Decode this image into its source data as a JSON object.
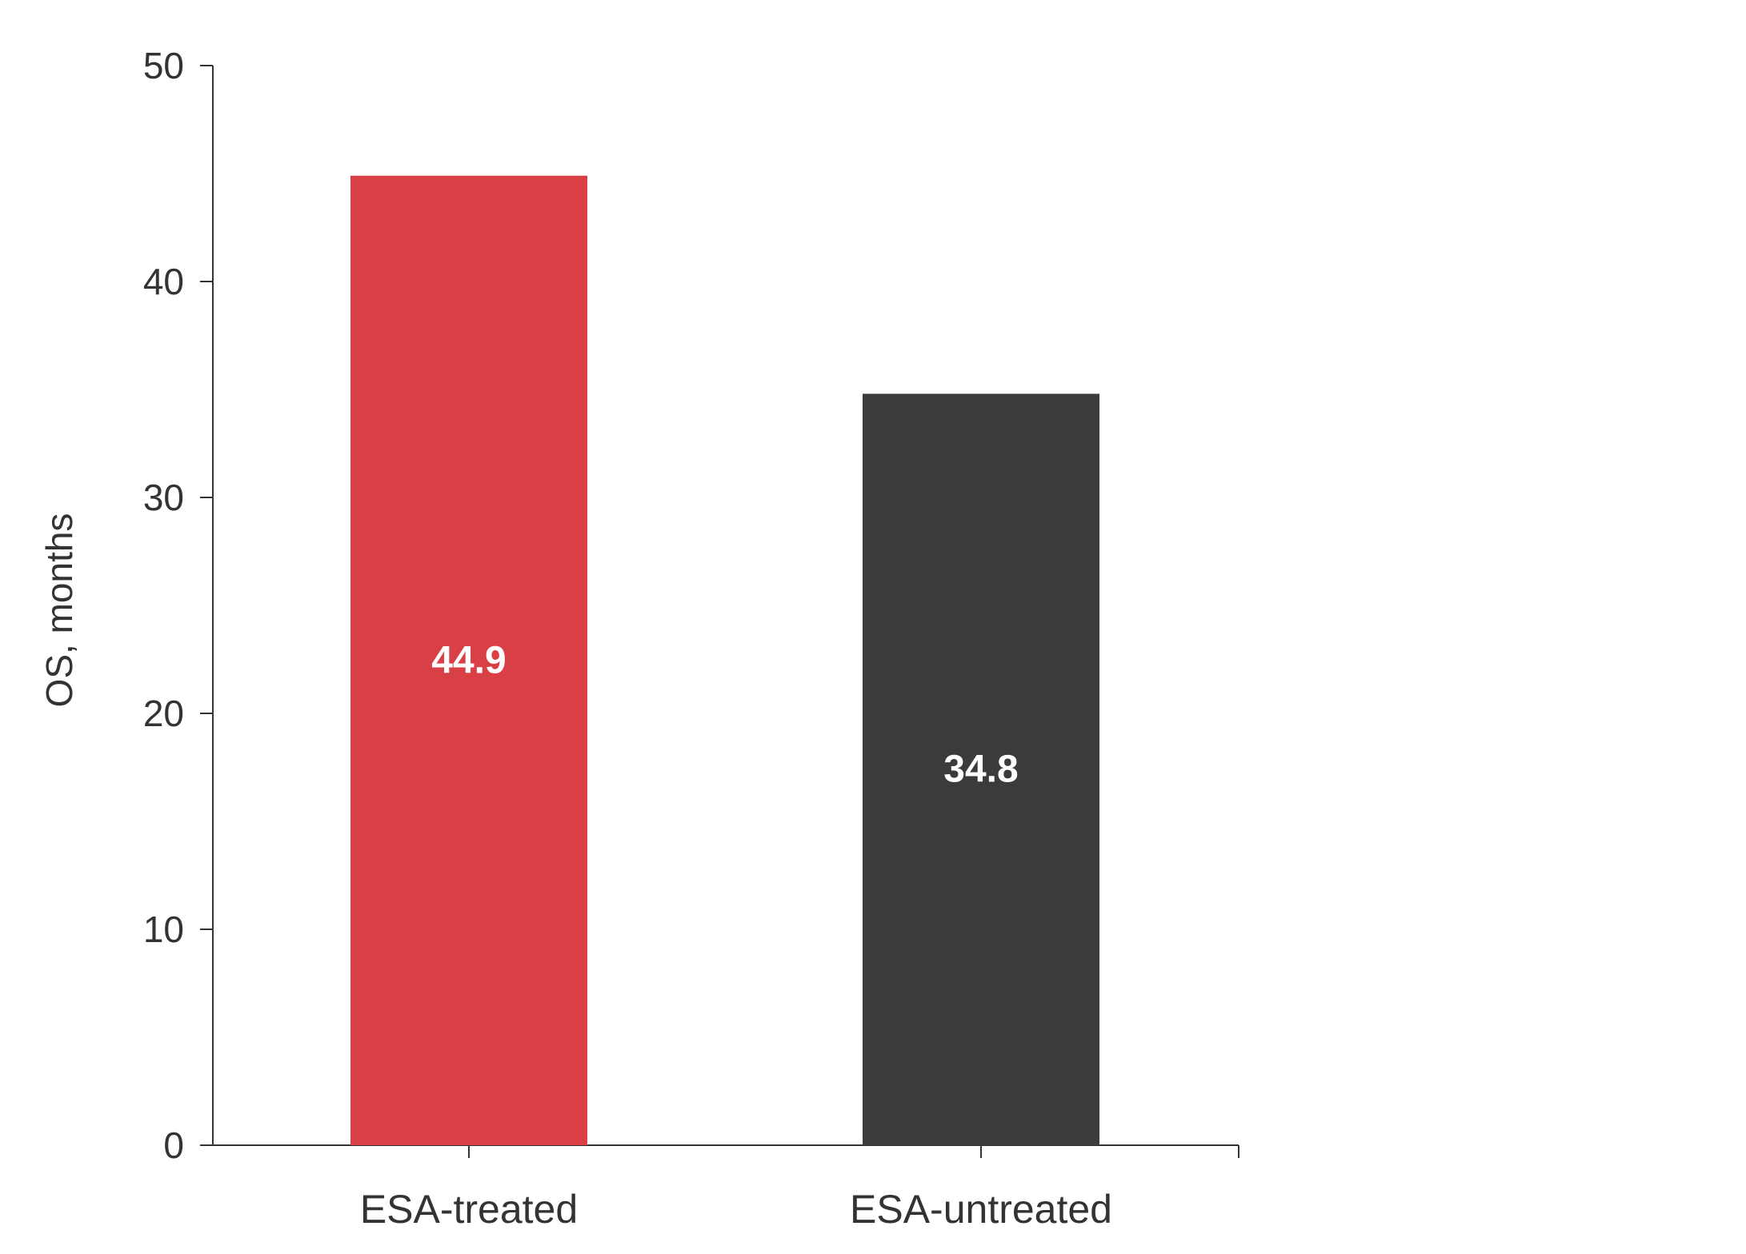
{
  "chart_data": {
    "type": "bar",
    "categories": [
      "ESA-treated",
      "ESA-untreated"
    ],
    "values": [
      44.9,
      34.8
    ],
    "value_labels": [
      "44.9",
      "34.8"
    ],
    "colors": [
      "#d94045",
      "#3b3b3b"
    ],
    "title": "",
    "xlabel": "",
    "ylabel": "OS, months",
    "ylim": [
      0,
      50
    ],
    "yticks": [
      0,
      10,
      20,
      30,
      40,
      50
    ],
    "ytick_labels": [
      "0",
      "10",
      "20",
      "30",
      "40",
      "50"
    ],
    "grid": false,
    "legend": "none"
  }
}
